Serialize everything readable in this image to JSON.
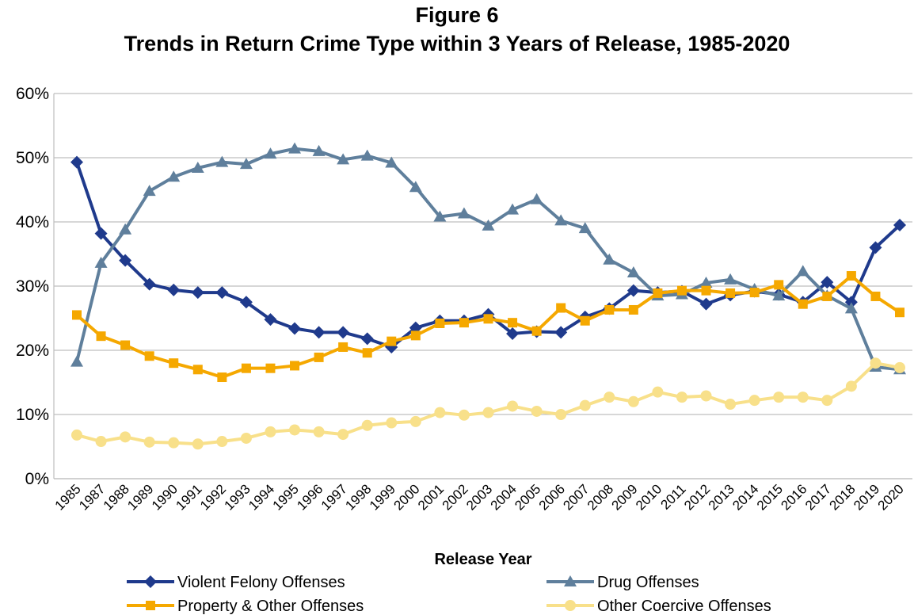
{
  "chart_data": {
    "type": "line",
    "title": "Figure 6",
    "subtitle": "Trends in Return Crime Type within 3 Years of Release, 1985-2020",
    "x_label": "Release Year",
    "categories": [
      "1985",
      "1987",
      "1988",
      "1989",
      "1990",
      "1991",
      "1992",
      "1993",
      "1994",
      "1995",
      "1996",
      "1997",
      "1998",
      "1999",
      "2000",
      "2001",
      "2002",
      "2003",
      "2004",
      "2005",
      "2006",
      "2007",
      "2008",
      "2009",
      "2010",
      "2011",
      "2012",
      "2013",
      "2014",
      "2015",
      "2016",
      "2017",
      "2018",
      "2019",
      "2020"
    ],
    "ylim": [
      0,
      60
    ],
    "yticks": [
      {
        "value": 0,
        "label": "0%"
      },
      {
        "value": 10,
        "label": "10%"
      },
      {
        "value": 20,
        "label": "20%"
      },
      {
        "value": 30,
        "label": "30%"
      },
      {
        "value": 40,
        "label": "40%"
      },
      {
        "value": 50,
        "label": "50%"
      },
      {
        "value": 60,
        "label": "60%"
      }
    ],
    "grid": true,
    "series": [
      {
        "name": "Violent Felony Offenses",
        "color": "#1f3a8c",
        "marker": "diamond",
        "values": [
          49.3,
          38.2,
          34.0,
          30.3,
          29.4,
          29.0,
          29.0,
          27.5,
          24.8,
          23.4,
          22.8,
          22.8,
          21.8,
          20.5,
          23.5,
          24.6,
          24.6,
          25.6,
          22.6,
          22.9,
          22.8,
          25.2,
          26.5,
          29.3,
          29.0,
          29.2,
          27.2,
          28.6,
          29.2,
          28.7,
          27.5,
          30.6,
          27.5,
          36.0,
          39.5
        ]
      },
      {
        "name": "Drug Offenses",
        "color": "#5f7f9c",
        "marker": "triangle",
        "values": [
          18.2,
          33.6,
          38.8,
          44.8,
          47.0,
          48.4,
          49.3,
          49.0,
          50.6,
          51.4,
          51.0,
          49.7,
          50.3,
          49.2,
          45.4,
          40.8,
          41.3,
          39.4,
          41.9,
          43.5,
          40.2,
          39.0,
          34.1,
          32.1,
          28.5,
          28.7,
          30.5,
          31.0,
          29.5,
          28.5,
          32.3,
          28.5,
          26.5,
          17.4,
          17.0
        ]
      },
      {
        "name": "Property & Other Offenses",
        "color": "#f5a800",
        "marker": "square",
        "values": [
          25.5,
          22.2,
          20.8,
          19.1,
          18.0,
          17.0,
          15.8,
          17.2,
          17.2,
          17.6,
          18.9,
          20.5,
          19.6,
          21.4,
          22.3,
          24.2,
          24.3,
          24.9,
          24.3,
          23.0,
          26.6,
          24.6,
          26.3,
          26.3,
          28.9,
          29.3,
          29.3,
          28.9,
          29.0,
          30.2,
          27.2,
          28.4,
          31.6,
          28.4,
          25.9
        ]
      },
      {
        "name": "Other Coercive Offenses",
        "color": "#f8e08a",
        "marker": "circle",
        "values": [
          6.8,
          5.8,
          6.5,
          5.7,
          5.6,
          5.4,
          5.8,
          6.3,
          7.3,
          7.6,
          7.3,
          6.9,
          8.3,
          8.7,
          8.9,
          10.3,
          9.9,
          10.3,
          11.3,
          10.5,
          10.0,
          11.4,
          12.7,
          12.0,
          13.5,
          12.7,
          12.9,
          11.6,
          12.2,
          12.7,
          12.7,
          12.2,
          14.4,
          18.0,
          17.3
        ]
      }
    ]
  }
}
